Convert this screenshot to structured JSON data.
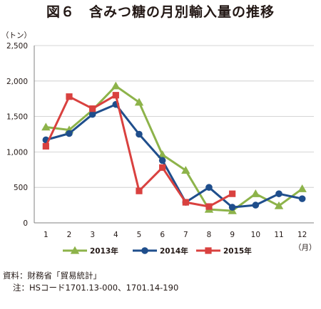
{
  "title": "図６　含みつ糖の月別輸入量の推移",
  "chart_data": {
    "type": "line",
    "unit_label": "（トン）",
    "x_unit_label": "（月）",
    "categories": [
      "1",
      "2",
      "3",
      "4",
      "5",
      "6",
      "7",
      "8",
      "9",
      "10",
      "11",
      "12"
    ],
    "ylim": [
      0,
      2500
    ],
    "yticks": [
      "0",
      "500",
      "1,000",
      "1,500",
      "2,000",
      "2,500"
    ],
    "ytick_values": [
      0,
      500,
      1000,
      1500,
      2000,
      2500
    ],
    "grid": true,
    "legend_position": "bottom",
    "series": [
      {
        "name": "2013年",
        "color": "#8db34a",
        "marker": "triangle",
        "values": [
          1350,
          1310,
          1590,
          1930,
          1700,
          960,
          740,
          190,
          170,
          410,
          240,
          480
        ]
      },
      {
        "name": "2014年",
        "color": "#1f4e8c",
        "marker": "circle",
        "values": [
          1170,
          1260,
          1530,
          1670,
          1250,
          880,
          290,
          500,
          220,
          250,
          410,
          340
        ]
      },
      {
        "name": "2015年",
        "color": "#d9413f",
        "marker": "square",
        "values": [
          1080,
          1780,
          1610,
          1800,
          450,
          780,
          290,
          230,
          410,
          null,
          null,
          null
        ]
      }
    ]
  },
  "notes": {
    "source": "資料：財務省「貿易統計」",
    "hs_note": "注：HSコード1701.13-000、1701.14-190"
  }
}
